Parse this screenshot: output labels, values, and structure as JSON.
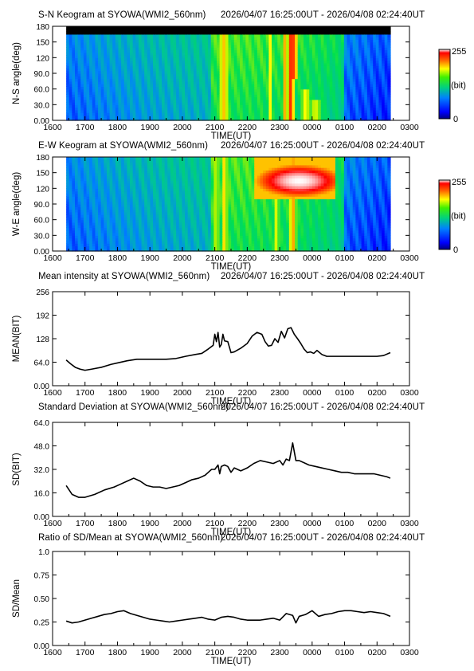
{
  "charts": {
    "time_range": "2026/04/07 16:25:00UT - 2026/04/08 02:24:40UT",
    "x_axis": {
      "label": "TIME(UT)",
      "ticks": [
        "1600",
        "1700",
        "1800",
        "1900",
        "2000",
        "2100",
        "2200",
        "2300",
        "0000",
        "0100",
        "0200",
        "0300"
      ]
    },
    "panels": [
      {
        "id": "sn",
        "title": "S-N Keogram at SYOWA(WMI2_560nm)",
        "ylabel": "N-S angle(deg)",
        "ticks": [
          "0.00",
          "30.0",
          "60.0",
          "90.0",
          "120",
          "150",
          "180"
        ],
        "colorbar_max": "255",
        "colorbar_unit": "(bit)",
        "colorbar_min": "0"
      },
      {
        "id": "ew",
        "title": "E-W Keogram at SYOWA(WMI2_560nm)",
        "ylabel": "W-E angle(deg)",
        "ticks": [
          "0.00",
          "30.0",
          "60.0",
          "90.0",
          "120",
          "150",
          "180"
        ],
        "colorbar_max": "255",
        "colorbar_unit": "(bit)",
        "colorbar_min": "0"
      },
      {
        "id": "mean",
        "title": "Mean intensity at SYOWA(WMI2_560nm)",
        "ylabel": "MEAN(BIT)",
        "ticks": [
          "0.00",
          "64.0",
          "128",
          "192",
          "256"
        ]
      },
      {
        "id": "sd",
        "title": "Standard Deviation at SYOWA(WMI2_560nm)",
        "ylabel": "SD(BIT)",
        "ticks": [
          "0.00",
          "16.0",
          "32.0",
          "48.0",
          "64.0"
        ]
      },
      {
        "id": "ratio",
        "title": "Ratio of SD/Mean at SYOWA(WMI2_560nm)",
        "ylabel": "SD/Mean",
        "ticks": [
          "0.00",
          "0.25",
          "0.50",
          "0.75",
          "1.0"
        ]
      }
    ]
  },
  "chart_data": [
    {
      "type": "heatmap",
      "title": "S-N Keogram at SYOWA(WMI2_560nm)",
      "subtitle": "2026/04/07 16:25:00UT - 2026/04/08 02:24:40UT",
      "xlabel": "TIME(UT)",
      "ylabel": "N-S angle(deg)",
      "xlim": [
        16.0,
        27.0
      ],
      "ylim": [
        0,
        180
      ],
      "colorbar": {
        "range": [
          0,
          255
        ],
        "unit": "(bit)"
      },
      "colors": [
        "#000080",
        "#0000ff",
        "#0080ff",
        "#00c0a0",
        "#00e050",
        "#a0f000",
        "#ffff00",
        "#ff8000",
        "#ff0000",
        "#ffffff"
      ],
      "coverage": {
        "start_hour": 16.42,
        "end_hour": 26.41,
        "masked_above_deg": 165
      },
      "bright_columns": [
        {
          "hour": 21.25,
          "width": 0.1,
          "level": 0.85,
          "lo": 0,
          "hi": 180
        },
        {
          "hour": 21.33,
          "width": 0.08,
          "level": 0.8,
          "lo": 0,
          "hi": 165
        },
        {
          "hour": 22.7,
          "width": 0.1,
          "level": 0.7,
          "lo": 0,
          "hi": 165
        },
        {
          "hour": 23.15,
          "width": 0.1,
          "level": 0.75,
          "lo": 0,
          "hi": 165
        },
        {
          "hour": 23.35,
          "width": 0.15,
          "level": 0.9,
          "lo": 0,
          "hi": 170
        },
        {
          "hour": 23.45,
          "width": 0.12,
          "level": 0.95,
          "lo": 80,
          "hi": 180
        },
        {
          "hour": 23.8,
          "width": 0.2,
          "level": 0.7,
          "lo": 0,
          "hi": 60
        },
        {
          "hour": 24.1,
          "width": 0.3,
          "level": 0.65,
          "lo": 0,
          "hi": 40
        }
      ]
    },
    {
      "type": "heatmap",
      "title": "E-W Keogram at SYOWA(WMI2_560nm)",
      "subtitle": "2026/04/07 16:25:00UT - 2026/04/08 02:24:40UT",
      "xlabel": "TIME(UT)",
      "ylabel": "W-E angle(deg)",
      "xlim": [
        16.0,
        27.0
      ],
      "ylim": [
        0,
        180
      ],
      "colorbar": {
        "range": [
          0,
          255
        ],
        "unit": "(bit)"
      },
      "colors": [
        "#000080",
        "#0000ff",
        "#0080ff",
        "#00c0a0",
        "#00e050",
        "#a0f000",
        "#ffff00",
        "#ff8000",
        "#ff0000",
        "#ffffff"
      ],
      "coverage": {
        "start_hour": 16.42,
        "end_hour": 26.41
      },
      "bright_region": {
        "hour_start": 22.25,
        "hour_end": 24.7,
        "angle_lo": 100,
        "angle_hi": 180,
        "peak_hour": 23.6,
        "peak_angle": 135,
        "peak_level": 1.0
      },
      "bright_columns": [
        {
          "hour": 21.05,
          "width": 0.1,
          "level": 0.7,
          "lo": 0,
          "hi": 180
        },
        {
          "hour": 21.3,
          "width": 0.12,
          "level": 0.75,
          "lo": 0,
          "hi": 180
        },
        {
          "hour": 22.9,
          "width": 0.15,
          "level": 0.65,
          "lo": 0,
          "hi": 180
        },
        {
          "hour": 23.4,
          "width": 0.15,
          "level": 0.8,
          "lo": 0,
          "hi": 180
        }
      ]
    },
    {
      "type": "line",
      "title": "Mean intensity at SYOWA(WMI2_560nm)",
      "subtitle": "2026/04/07 16:25:00UT - 2026/04/08 02:24:40UT",
      "xlabel": "TIME(UT)",
      "ylabel": "MEAN(BIT)",
      "xlim": [
        16.0,
        27.0
      ],
      "ylim": [
        0,
        256
      ],
      "x": [
        16.42,
        16.55,
        16.7,
        16.85,
        17.0,
        17.2,
        17.5,
        17.8,
        18.0,
        18.3,
        18.6,
        18.9,
        19.2,
        19.5,
        19.8,
        20.1,
        20.4,
        20.6,
        20.8,
        20.95,
        21.0,
        21.05,
        21.1,
        21.15,
        21.2,
        21.25,
        21.3,
        21.4,
        21.5,
        21.6,
        21.8,
        22.0,
        22.15,
        22.3,
        22.45,
        22.55,
        22.65,
        22.75,
        22.85,
        22.95,
        23.05,
        23.15,
        23.25,
        23.35,
        23.45,
        23.55,
        23.65,
        23.75,
        23.85,
        23.95,
        24.05,
        24.15,
        24.3,
        24.45,
        24.6,
        24.8,
        25.0,
        25.2,
        25.4,
        25.6,
        25.8,
        26.0,
        26.2,
        26.41
      ],
      "y": [
        70,
        60,
        50,
        45,
        42,
        45,
        50,
        58,
        62,
        68,
        72,
        72,
        72,
        72,
        74,
        80,
        85,
        88,
        100,
        110,
        140,
        120,
        145,
        105,
        112,
        140,
        122,
        120,
        90,
        92,
        102,
        115,
        135,
        145,
        140,
        120,
        108,
        110,
        128,
        118,
        148,
        130,
        155,
        158,
        140,
        128,
        115,
        100,
        90,
        92,
        88,
        96,
        85,
        80,
        80,
        80,
        80,
        80,
        80,
        80,
        80,
        80,
        82,
        90
      ]
    },
    {
      "type": "line",
      "title": "Standard Deviation at SYOWA(WMI2_560nm)",
      "subtitle": "2026/04/07 16:25:00UT - 2026/04/08 02:24:40UT",
      "xlabel": "TIME(UT)",
      "ylabel": "SD(BIT)",
      "xlim": [
        16.0,
        27.0
      ],
      "ylim": [
        0,
        64
      ],
      "x": [
        16.42,
        16.6,
        16.8,
        17.0,
        17.3,
        17.6,
        17.9,
        18.1,
        18.3,
        18.5,
        18.7,
        18.9,
        19.1,
        19.3,
        19.5,
        19.7,
        19.9,
        20.1,
        20.3,
        20.5,
        20.7,
        20.8,
        20.9,
        21.0,
        21.1,
        21.15,
        21.2,
        21.3,
        21.4,
        21.5,
        21.6,
        21.8,
        22.0,
        22.2,
        22.4,
        22.6,
        22.8,
        23.0,
        23.1,
        23.2,
        23.3,
        23.4,
        23.5,
        23.6,
        23.7,
        23.9,
        24.1,
        24.3,
        24.5,
        24.7,
        24.9,
        25.1,
        25.3,
        25.5,
        25.7,
        25.9,
        26.1,
        26.3,
        26.41
      ],
      "y": [
        21,
        15,
        13,
        13,
        15,
        18,
        20,
        22,
        24,
        26,
        24,
        21,
        20,
        20,
        19,
        20,
        21,
        23,
        25,
        26,
        28,
        30,
        32,
        32,
        35,
        29,
        34,
        35,
        34,
        30,
        33,
        31,
        33,
        36,
        38,
        37,
        36,
        38,
        35,
        39,
        38,
        50,
        38,
        38,
        37,
        35,
        34,
        33,
        32,
        31,
        30,
        30,
        29,
        29,
        29,
        29,
        28,
        27,
        26
      ]
    },
    {
      "type": "line",
      "title": "Ratio of SD/Mean at SYOWA(WMI2_560nm)",
      "subtitle": "2026/04/07 16:25:00UT - 2026/04/08 02:24:40UT",
      "xlabel": "TIME(UT)",
      "ylabel": "SD/Mean",
      "xlim": [
        16.0,
        27.0
      ],
      "ylim": [
        0,
        1.0
      ],
      "x": [
        16.42,
        16.6,
        16.8,
        17.0,
        17.2,
        17.4,
        17.6,
        17.8,
        18.0,
        18.2,
        18.4,
        18.6,
        18.8,
        19.0,
        19.2,
        19.4,
        19.6,
        19.8,
        20.0,
        20.2,
        20.4,
        20.6,
        20.8,
        21.0,
        21.2,
        21.4,
        21.6,
        21.8,
        22.0,
        22.2,
        22.4,
        22.6,
        22.8,
        23.0,
        23.2,
        23.4,
        23.5,
        23.6,
        23.8,
        24.0,
        24.2,
        24.4,
        24.6,
        24.8,
        25.0,
        25.2,
        25.4,
        25.6,
        25.8,
        26.0,
        26.2,
        26.41
      ],
      "y": [
        0.26,
        0.24,
        0.25,
        0.27,
        0.29,
        0.31,
        0.33,
        0.34,
        0.36,
        0.37,
        0.34,
        0.32,
        0.3,
        0.28,
        0.27,
        0.26,
        0.25,
        0.26,
        0.27,
        0.28,
        0.29,
        0.3,
        0.28,
        0.27,
        0.3,
        0.31,
        0.3,
        0.28,
        0.27,
        0.27,
        0.27,
        0.28,
        0.29,
        0.27,
        0.34,
        0.32,
        0.24,
        0.31,
        0.33,
        0.37,
        0.31,
        0.33,
        0.34,
        0.36,
        0.37,
        0.37,
        0.36,
        0.35,
        0.36,
        0.35,
        0.34,
        0.31
      ]
    }
  ]
}
